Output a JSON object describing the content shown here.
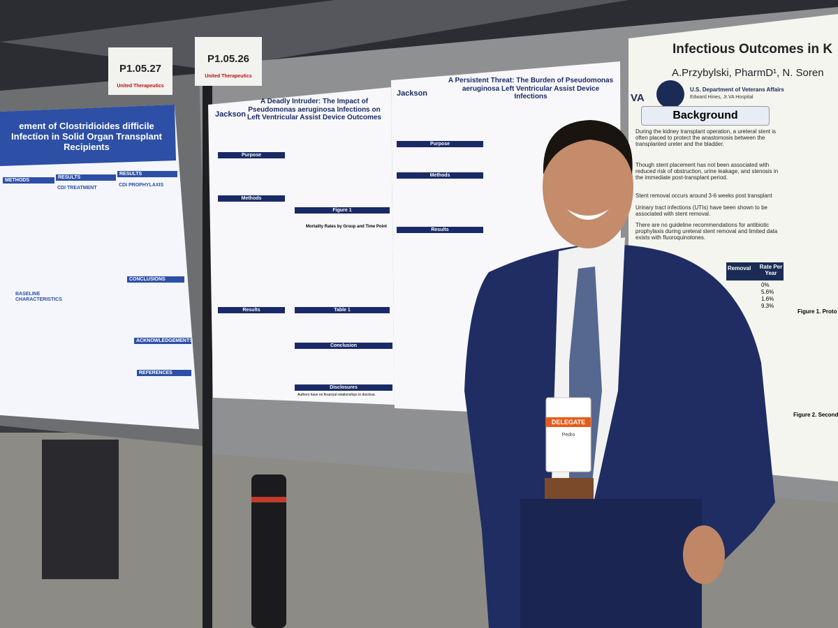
{
  "signs": [
    {
      "number": "P1.05.27",
      "sponsor": "United Therapeutics"
    },
    {
      "number": "P1.05.26",
      "sponsor": "United Therapeutics"
    }
  ],
  "posters": [
    {
      "title": "ement of Clostridioides difficile Infection in Solid Organ Transplant Recipients",
      "sections": [
        "METHODS",
        "RESULTS",
        "RESULTS",
        "CDI TREATMENT",
        "CDI PROPHYLAXIS",
        "CONCLUSIONS",
        "BASELINE CHARACTERISTICS",
        "ACKNOWLEDGEMENTS",
        "REFERENCES"
      ]
    },
    {
      "title": "A Deadly Intruder: The Impact of Pseudomonas aeruginosa Infections on Left Ventricular Assist Device Outcomes",
      "institution": "Jackson",
      "sections": [
        "Purpose",
        "Methods",
        "Results",
        "Figure 1",
        "Mortality Rates by Group and Time Point",
        "Table 1",
        "Conclusion",
        "Disclosures"
      ],
      "disclosure": "Authors have no financial relationships to disclose."
    },
    {
      "title": "A Persistent Threat: The Burden of Pseudomonas aeruginosa Left Ventricular Assist Device Infections",
      "institution": "Jackson",
      "sections": [
        "Purpose",
        "Methods",
        "Results"
      ]
    },
    {
      "title": "Infectious Outcomes in K",
      "authors": "A.Przybylski, PharmD¹, N. Soren",
      "logo": "VA",
      "agency": "U.S. Department of Veterans Affairs",
      "hospital": "Edward Hines, Jr.VA Hospital",
      "section": "Background",
      "bullets": [
        "During the kidney transplant operation, a ureteral stent is often placed to protect the anastomosis between the transplanted ureter and the bladder.",
        "Though stent placement has not been associated with reduced risk of obstruction, urine leakage, and stenosis in the immediate post-transplant period.",
        "Stent removal occurs around 3-6 weeks post transplant",
        "Urinary tract infections (UTIs) have been shown to be associated with stent removal.",
        "There are no guideline recommendations for antibiotic prophylaxis during ureteral stent removal and limited data exists with fluoroquinolones."
      ],
      "table_header": [
        "Removal",
        "Rate Per Year"
      ],
      "rates": [
        "0%",
        "5.6%",
        "1.6%",
        "9.3%"
      ],
      "figures": [
        "Figure 1. Proto",
        "Figure 2. Second"
      ]
    }
  ],
  "badge": {
    "role": "DELEGATE",
    "name": "Pedro"
  }
}
